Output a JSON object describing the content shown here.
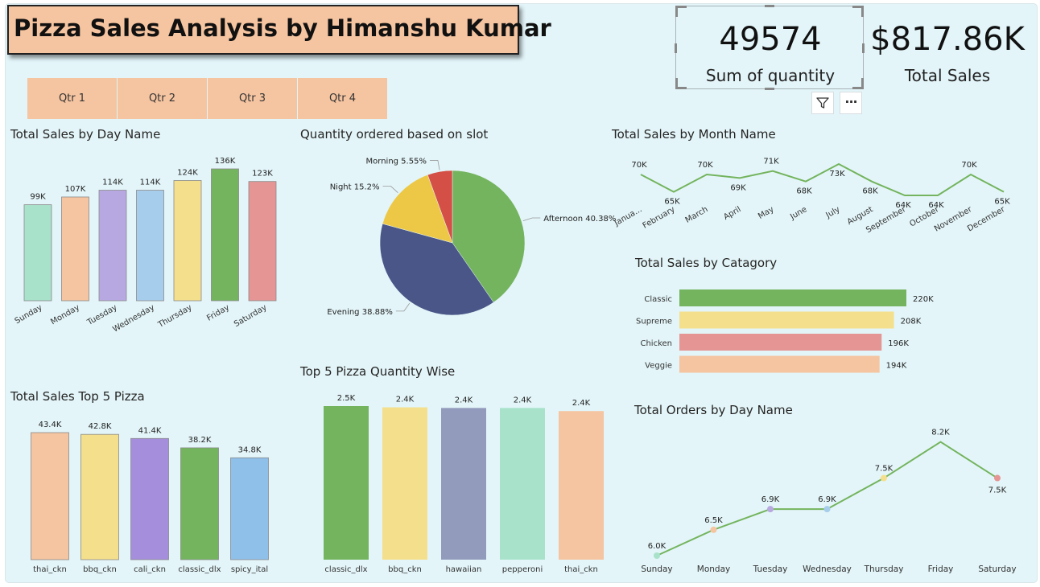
{
  "header": {
    "title": "Pizza Sales Analysis by Himanshu Kumar"
  },
  "slicer": {
    "buttons": [
      "Qtr 1",
      "Qtr 2",
      "Qtr 3",
      "Qtr 4"
    ],
    "color": "#f5c4a0"
  },
  "kpis": {
    "quantity": {
      "value": "49574",
      "label": "Sum of quantity"
    },
    "sales": {
      "value": "$817.86K",
      "label": "Total Sales"
    }
  },
  "toolbar": {
    "filter_icon": "filter-icon",
    "more_icon": "more-options-icon",
    "more_glyph": "···"
  },
  "colors": {
    "background": "#e3f5f9",
    "accent": "#f5c4a0",
    "line": "#74b45e"
  },
  "chart_data": [
    {
      "id": "day_sales",
      "type": "bar",
      "title": "Total Sales by Day Name",
      "categories": [
        "Sunday",
        "Monday",
        "Tuesday",
        "Wednesday",
        "Thursday",
        "Friday",
        "Saturday"
      ],
      "values": [
        99,
        107,
        114,
        114,
        124,
        136,
        123
      ],
      "labels": [
        "99K",
        "107K",
        "114K",
        "114K",
        "124K",
        "136K",
        "123K"
      ],
      "colors": [
        "#a9e2cb",
        "#f5c4a0",
        "#b8a8e2",
        "#a7cdec",
        "#f4df8c",
        "#74b45e",
        "#e49594"
      ],
      "ylim": [
        0,
        136
      ]
    },
    {
      "id": "slot_qty",
      "type": "pie",
      "title": "Quantity ordered based on slot",
      "slices": [
        {
          "name": "Afternoon",
          "value": 40.38,
          "label": "Afternoon 40.38%",
          "color": "#74b45e"
        },
        {
          "name": "Evening",
          "value": 38.88,
          "label": "Evening 38.88%",
          "color": "#4a5687"
        },
        {
          "name": "Night",
          "value": 15.2,
          "label": "Night 15.2%",
          "color": "#ecc846"
        },
        {
          "name": "Morning",
          "value": 5.55,
          "label": "Morning 5.55%",
          "color": "#d44f45"
        }
      ]
    },
    {
      "id": "month_sales",
      "type": "line",
      "title": "Total Sales by Month Name",
      "categories": [
        "Janua...",
        "February",
        "March",
        "April",
        "May",
        "June",
        "July",
        "August",
        "September",
        "October",
        "November",
        "December"
      ],
      "values": [
        70,
        65,
        70,
        69,
        71,
        68,
        73,
        68,
        64,
        64,
        70,
        65
      ],
      "labels": [
        "70K",
        "65K",
        "70K",
        "69K",
        "71K",
        "68K",
        "73K",
        "68K",
        "64K",
        "64K",
        "70K",
        "65K"
      ],
      "color": "#74b45e"
    },
    {
      "id": "category_sales",
      "type": "bar",
      "orientation": "horizontal",
      "title": "Total Sales by Catagory",
      "categories": [
        "Classic",
        "Supreme",
        "Chicken",
        "Veggie"
      ],
      "values": [
        220,
        208,
        196,
        194
      ],
      "labels": [
        "220K",
        "208K",
        "196K",
        "194K"
      ],
      "colors": [
        "#74b45e",
        "#f4df8c",
        "#e49594",
        "#f5c4a0"
      ],
      "xlim": [
        0,
        220
      ]
    },
    {
      "id": "top5_sales",
      "type": "bar",
      "title": "Total Sales Top 5 Pizza",
      "categories": [
        "thai_ckn",
        "bbq_ckn",
        "cali_ckn",
        "classic_dlx",
        "spicy_ital"
      ],
      "values": [
        43.4,
        42.8,
        41.4,
        38.2,
        34.8
      ],
      "labels": [
        "43.4K",
        "42.8K",
        "41.4K",
        "38.2K",
        "34.8K"
      ],
      "colors": [
        "#f5c4a0",
        "#f4df8c",
        "#a58edb",
        "#74b45e",
        "#8fc0ea"
      ],
      "ylim": [
        0,
        43.4
      ]
    },
    {
      "id": "top5_qty",
      "type": "bar",
      "title": "Top 5 Pizza Quantity Wise",
      "categories": [
        "classic_dlx",
        "bbq_ckn",
        "hawaiian",
        "pepperoni",
        "thai_ckn"
      ],
      "values": [
        2.45,
        2.43,
        2.42,
        2.42,
        2.37
      ],
      "labels": [
        "2.5K",
        "2.4K",
        "2.4K",
        "2.4K",
        "2.4K"
      ],
      "colors": [
        "#74b45e",
        "#f4df8c",
        "#939bbd",
        "#a9e2cb",
        "#f5c4a0"
      ],
      "ylim": [
        0,
        2.45
      ]
    },
    {
      "id": "day_orders",
      "type": "line",
      "title": "Total Orders by Day Name",
      "categories": [
        "Sunday",
        "Monday",
        "Tuesday",
        "Wednesday",
        "Thursday",
        "Friday",
        "Saturday"
      ],
      "values": [
        6.0,
        6.5,
        6.9,
        6.9,
        7.5,
        8.2,
        7.5
      ],
      "labels": [
        "6.0K",
        "6.5K",
        "6.9K",
        "6.9K",
        "7.5K",
        "8.2K",
        "7.5K"
      ],
      "marker_colors": [
        "#a9e2cb",
        "#f5c4a0",
        "#b8a8e2",
        "#a7cdec",
        "#f4df8c",
        "#74b45e",
        "#e49594"
      ],
      "color": "#74b45e"
    }
  ]
}
